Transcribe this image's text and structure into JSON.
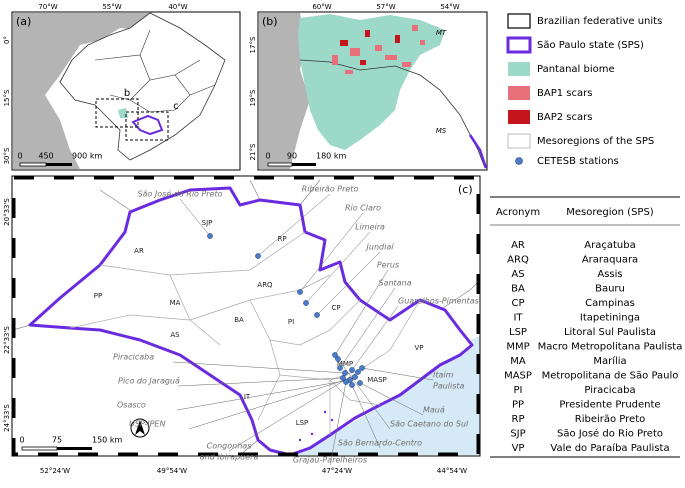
{
  "panel_a": {
    "label": "(a)",
    "top_ticks": [
      "70°W",
      "55°W",
      "40°W"
    ],
    "left_ticks": [
      "0°",
      "15°S",
      "30°S"
    ],
    "scale": [
      "0",
      "450",
      "900 km"
    ],
    "boxes": [
      "b",
      "c"
    ]
  },
  "panel_b": {
    "label": "(b)",
    "top_ticks": [
      "60°W",
      "57°W",
      "54°W"
    ],
    "left_ticks": [
      "17°S",
      "19°S",
      "21°S"
    ],
    "scale": [
      "0",
      "90",
      "180 km"
    ],
    "states": [
      "MT",
      "MS"
    ]
  },
  "legend": {
    "items": [
      "Brazilian federative units",
      "São Paulo state (SPS)",
      "Pantanal biome",
      "BAP1 scars",
      "BAP2 scars",
      "Mesoregions of the SPS",
      "CETESB stations"
    ]
  },
  "panel_c": {
    "label": "(c)",
    "left_ticks": [
      "20°33'S",
      "22°33'S",
      "24°33'S"
    ],
    "bottom_ticks": [
      "52°24'W",
      "49°54'W",
      "47°24'W",
      "44°54'W"
    ],
    "scale": [
      "0",
      "75",
      "150 km"
    ],
    "regions": [
      "SJP",
      "AR",
      "RP",
      "ARQ",
      "PP",
      "MA",
      "BA",
      "PI",
      "CP",
      "AS",
      "MMP",
      "MASP",
      "VP",
      "IT",
      "LSP"
    ],
    "stations": [
      [
        "São José do Rio Preto"
      ],
      [
        "Ribeirão Preto"
      ],
      [
        "Rio Claro"
      ],
      [
        "Limeira"
      ],
      [
        "Jundiaí"
      ],
      [
        "Perus"
      ],
      [
        "Santana"
      ],
      [
        "Guarulhos-Pimentas"
      ],
      [
        "Piracicaba"
      ],
      [
        "Pico do Jaraguá"
      ],
      [
        "Osasco"
      ],
      [
        "USP-IPEN"
      ],
      [
        "Congonhas",
        "and Ibirapuera"
      ],
      [
        "Grajaú-Parelheiros"
      ],
      [
        "São Bernardo-Centro"
      ],
      [
        "São Caetano do Sul"
      ],
      [
        "Mauá"
      ],
      [
        "Itaim",
        "Paulista"
      ]
    ]
  },
  "table": {
    "header": [
      "Acronym",
      "Mesoregion (SPS)"
    ],
    "rows": [
      [
        "AR",
        "Araçatuba"
      ],
      [
        "ARQ",
        "Araraquara"
      ],
      [
        "AS",
        "Assis"
      ],
      [
        "BA",
        "Bauru"
      ],
      [
        "CP",
        "Campinas"
      ],
      [
        "IT",
        "Itapetininga"
      ],
      [
        "LSP",
        "Litoral Sul Paulista"
      ],
      [
        "MMP",
        "Macro Metropolitana Paulista"
      ],
      [
        "MA",
        "Marília"
      ],
      [
        "MASP",
        "Metropolitana de São Paulo"
      ],
      [
        "PI",
        "Piracicaba"
      ],
      [
        "PP",
        "Presidente Prudente"
      ],
      [
        "RP",
        "Ribeirão Preto"
      ],
      [
        "SJP",
        "São José do Rio Preto"
      ],
      [
        "VP",
        "Vale do Paraíba Paulista"
      ]
    ]
  }
}
